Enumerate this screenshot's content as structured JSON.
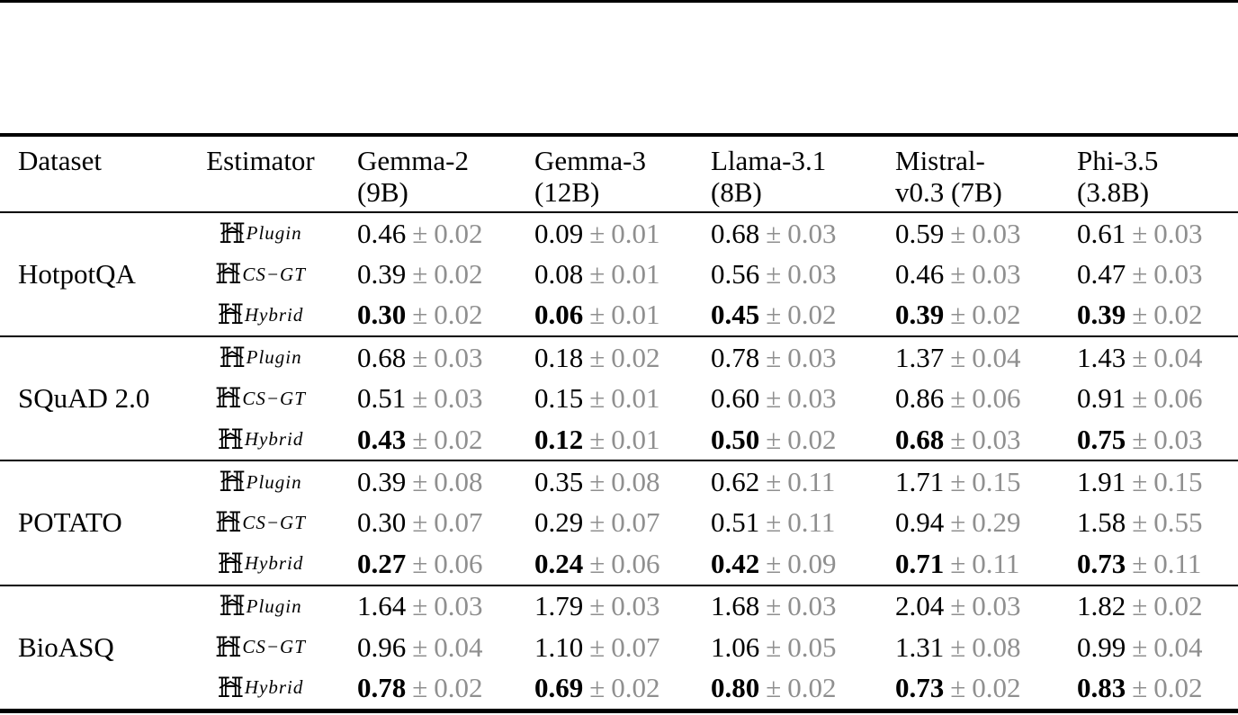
{
  "colors": {
    "text": "#000000",
    "muted": "#8f8f8f",
    "rule": "#000000"
  },
  "table": {
    "pm": "±",
    "estimator_symbol": "ℍ",
    "columns": [
      {
        "line1": "Dataset",
        "line2": ""
      },
      {
        "line1": "Estimator",
        "line2": ""
      },
      {
        "line1": "Gemma-2",
        "line2": "(9B)"
      },
      {
        "line1": "Gemma-3",
        "line2": "(12B)"
      },
      {
        "line1": "Llama-3.1",
        "line2": "(8B)"
      },
      {
        "line1": "Mistral-",
        "line2": "v0.3 (7B)"
      },
      {
        "line1": "Phi-3.5",
        "line2": "(3.8B)"
      }
    ],
    "groups": [
      {
        "dataset": "HotpotQA",
        "rows": [
          {
            "estimator_sub": "Plugin",
            "bold": false,
            "values": [
              {
                "mean": "0.46",
                "err": "0.02"
              },
              {
                "mean": "0.09",
                "err": "0.01"
              },
              {
                "mean": "0.68",
                "err": "0.03"
              },
              {
                "mean": "0.59",
                "err": "0.03"
              },
              {
                "mean": "0.61",
                "err": "0.03"
              }
            ]
          },
          {
            "estimator_sub": "CS−GT",
            "bold": false,
            "values": [
              {
                "mean": "0.39",
                "err": "0.02"
              },
              {
                "mean": "0.08",
                "err": "0.01"
              },
              {
                "mean": "0.56",
                "err": "0.03"
              },
              {
                "mean": "0.46",
                "err": "0.03"
              },
              {
                "mean": "0.47",
                "err": "0.03"
              }
            ]
          },
          {
            "estimator_sub": "Hybrid",
            "bold": true,
            "values": [
              {
                "mean": "0.30",
                "err": "0.02"
              },
              {
                "mean": "0.06",
                "err": "0.01"
              },
              {
                "mean": "0.45",
                "err": "0.02"
              },
              {
                "mean": "0.39",
                "err": "0.02"
              },
              {
                "mean": "0.39",
                "err": "0.02"
              }
            ]
          }
        ]
      },
      {
        "dataset": "SQuAD 2.0",
        "rows": [
          {
            "estimator_sub": "Plugin",
            "bold": false,
            "values": [
              {
                "mean": "0.68",
                "err": "0.03"
              },
              {
                "mean": "0.18",
                "err": "0.02"
              },
              {
                "mean": "0.78",
                "err": "0.03"
              },
              {
                "mean": "1.37",
                "err": "0.04"
              },
              {
                "mean": "1.43",
                "err": "0.04"
              }
            ]
          },
          {
            "estimator_sub": "CS−GT",
            "bold": false,
            "values": [
              {
                "mean": "0.51",
                "err": "0.03"
              },
              {
                "mean": "0.15",
                "err": "0.01"
              },
              {
                "mean": "0.60",
                "err": "0.03"
              },
              {
                "mean": "0.86",
                "err": "0.06"
              },
              {
                "mean": "0.91",
                "err": "0.06"
              }
            ]
          },
          {
            "estimator_sub": "Hybrid",
            "bold": true,
            "values": [
              {
                "mean": "0.43",
                "err": "0.02"
              },
              {
                "mean": "0.12",
                "err": "0.01"
              },
              {
                "mean": "0.50",
                "err": "0.02"
              },
              {
                "mean": "0.68",
                "err": "0.03"
              },
              {
                "mean": "0.75",
                "err": "0.03"
              }
            ]
          }
        ]
      },
      {
        "dataset": "POTATO",
        "rows": [
          {
            "estimator_sub": "Plugin",
            "bold": false,
            "values": [
              {
                "mean": "0.39",
                "err": "0.08"
              },
              {
                "mean": "0.35",
                "err": "0.08"
              },
              {
                "mean": "0.62",
                "err": "0.11"
              },
              {
                "mean": "1.71",
                "err": "0.15"
              },
              {
                "mean": "1.91",
                "err": "0.15"
              }
            ]
          },
          {
            "estimator_sub": "CS−GT",
            "bold": false,
            "values": [
              {
                "mean": "0.30",
                "err": "0.07"
              },
              {
                "mean": "0.29",
                "err": "0.07"
              },
              {
                "mean": "0.51",
                "err": "0.11"
              },
              {
                "mean": "0.94",
                "err": "0.29"
              },
              {
                "mean": "1.58",
                "err": "0.55"
              }
            ]
          },
          {
            "estimator_sub": "Hybrid",
            "bold": true,
            "values": [
              {
                "mean": "0.27",
                "err": "0.06"
              },
              {
                "mean": "0.24",
                "err": "0.06"
              },
              {
                "mean": "0.42",
                "err": "0.09"
              },
              {
                "mean": "0.71",
                "err": "0.11"
              },
              {
                "mean": "0.73",
                "err": "0.11"
              }
            ]
          }
        ]
      },
      {
        "dataset": "BioASQ",
        "rows": [
          {
            "estimator_sub": "Plugin",
            "bold": false,
            "values": [
              {
                "mean": "1.64",
                "err": "0.03"
              },
              {
                "mean": "1.79",
                "err": "0.03"
              },
              {
                "mean": "1.68",
                "err": "0.03"
              },
              {
                "mean": "2.04",
                "err": "0.03"
              },
              {
                "mean": "1.82",
                "err": "0.02"
              }
            ]
          },
          {
            "estimator_sub": "CS−GT",
            "bold": false,
            "values": [
              {
                "mean": "0.96",
                "err": "0.04"
              },
              {
                "mean": "1.10",
                "err": "0.07"
              },
              {
                "mean": "1.06",
                "err": "0.05"
              },
              {
                "mean": "1.31",
                "err": "0.08"
              },
              {
                "mean": "0.99",
                "err": "0.04"
              }
            ]
          },
          {
            "estimator_sub": "Hybrid",
            "bold": true,
            "values": [
              {
                "mean": "0.78",
                "err": "0.02"
              },
              {
                "mean": "0.69",
                "err": "0.02"
              },
              {
                "mean": "0.80",
                "err": "0.02"
              },
              {
                "mean": "0.73",
                "err": "0.02"
              },
              {
                "mean": "0.83",
                "err": "0.02"
              }
            ]
          }
        ]
      }
    ]
  }
}
